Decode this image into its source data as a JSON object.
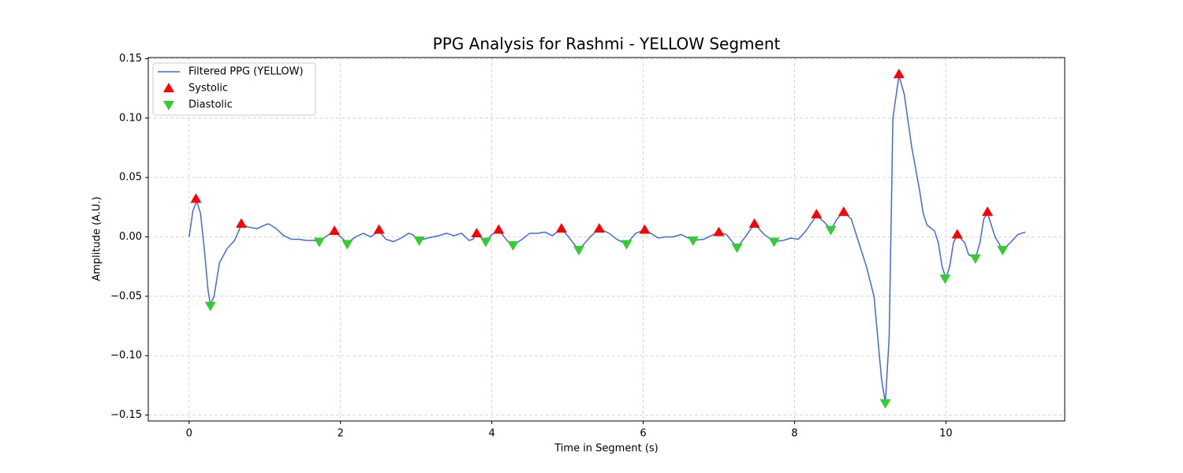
{
  "chart_data": {
    "type": "line",
    "title": "PPG Analysis for Rashmi - YELLOW Segment",
    "xlabel": "Time in Segment (s)",
    "ylabel": "Amplitude (A.U.)",
    "xlim": [
      -0.54,
      11.57
    ],
    "ylim": [
      -0.155,
      0.151
    ],
    "xticks": [
      0,
      2,
      4,
      6,
      8,
      10
    ],
    "yticks": [
      {
        "value": -0.15,
        "label": "−0.15"
      },
      {
        "value": -0.1,
        "label": "−0.10"
      },
      {
        "value": -0.05,
        "label": "−0.05"
      },
      {
        "value": 0,
        "label": "0.00"
      },
      0.05,
      {
        "value": 0.1,
        "label": "0.10"
      },
      0.15
    ],
    "grid": true,
    "legend": "upper left",
    "series": [
      {
        "name": "Filtered PPG (YELLOW)",
        "type": "line",
        "color": "#4169e1",
        "x": [
          0,
          0.05,
          0.1,
          0.15,
          0.2,
          0.25,
          0.28,
          0.33,
          0.4,
          0.5,
          0.6,
          0.69,
          0.8,
          0.9,
          1.0,
          1.05,
          1.15,
          1.25,
          1.35,
          1.45,
          1.55,
          1.65,
          1.72,
          1.8,
          1.92,
          2.0,
          2.09,
          2.2,
          2.3,
          2.4,
          2.51,
          2.6,
          2.7,
          2.8,
          2.9,
          2.95,
          3.04,
          3.15,
          3.3,
          3.4,
          3.5,
          3.6,
          3.7,
          3.75,
          3.8,
          3.92,
          4.0,
          4.09,
          4.2,
          4.28,
          4.4,
          4.5,
          4.6,
          4.7,
          4.8,
          4.92,
          5.0,
          5.15,
          5.3,
          5.42,
          5.55,
          5.65,
          5.78,
          5.9,
          6.02,
          6.1,
          6.2,
          6.3,
          6.4,
          6.5,
          6.66,
          6.8,
          6.9,
          7.0,
          7.1,
          7.24,
          7.35,
          7.47,
          7.6,
          7.73,
          7.85,
          7.95,
          8.05,
          8.15,
          8.29,
          8.4,
          8.48,
          8.56,
          8.65,
          8.75,
          8.85,
          8.95,
          9.05,
          9.1,
          9.15,
          9.2,
          9.25,
          9.3,
          9.38,
          9.45,
          9.55,
          9.65,
          9.7,
          9.75,
          9.85,
          9.9,
          9.95,
          10.0,
          10.05,
          10.1,
          10.15,
          10.25,
          10.3,
          10.39,
          10.45,
          10.5,
          10.55,
          10.65,
          10.75,
          10.85,
          10.95,
          11.05
        ],
        "values": [
          0,
          0.022,
          0.03,
          0.02,
          -0.01,
          -0.045,
          -0.057,
          -0.05,
          -0.022,
          -0.01,
          -0.003,
          0.01,
          0.008,
          0.007,
          0.01,
          0.011,
          0.007,
          0.001,
          -0.002,
          -0.002,
          -0.003,
          -0.003,
          -0.004,
          0,
          0.005,
          0,
          -0.005,
          0,
          0.003,
          0,
          0.005,
          -0.002,
          -0.004,
          -0.001,
          0.003,
          0.002,
          -0.003,
          -0.001,
          0.001,
          0.003,
          0.001,
          0.003,
          -0.003,
          -0.002,
          0.003,
          -0.004,
          0.002,
          0.006,
          -0.003,
          -0.007,
          -0.002,
          0.003,
          0.003,
          0.004,
          0.001,
          0.007,
          0.001,
          -0.011,
          0,
          0.007,
          0.003,
          -0.002,
          -0.006,
          0.003,
          0.006,
          0.003,
          -0.001,
          0,
          0,
          0.002,
          -0.003,
          -0.002,
          0.001,
          0.004,
          0.002,
          -0.009,
          0,
          0.011,
          0.002,
          -0.004,
          -0.003,
          -0.001,
          -0.002,
          0.005,
          0.018,
          0.012,
          0.006,
          0.015,
          0.021,
          0.015,
          -0.005,
          -0.025,
          -0.05,
          -0.085,
          -0.12,
          -0.14,
          -0.085,
          0.1,
          0.136,
          0.12,
          0.075,
          0.04,
          0.02,
          0.01,
          0.005,
          -0.005,
          -0.025,
          -0.035,
          -0.025,
          -0.005,
          0.002,
          -0.005,
          -0.015,
          -0.018,
          -0.005,
          0.015,
          0.02,
          0,
          -0.011,
          -0.005,
          0.002,
          0.004
        ]
      },
      {
        "name": "Systolic",
        "type": "scatter",
        "marker": "triangle-up",
        "color": "#ff0000",
        "x": [
          0.09,
          0.69,
          1.92,
          2.51,
          3.8,
          4.09,
          4.92,
          5.42,
          6.02,
          7.0,
          7.47,
          8.29,
          8.65,
          9.38,
          10.15,
          10.55
        ],
        "values": [
          0.032,
          0.011,
          0.005,
          0.006,
          0.003,
          0.006,
          0.007,
          0.007,
          0.006,
          0.004,
          0.011,
          0.019,
          0.021,
          0.137,
          0.002,
          0.021
        ]
      },
      {
        "name": "Diastolic",
        "type": "scatter",
        "marker": "triangle-down",
        "color": "#32cd32",
        "x": [
          0.28,
          1.72,
          2.09,
          3.04,
          3.92,
          4.28,
          5.15,
          5.78,
          6.66,
          7.24,
          7.73,
          8.48,
          9.2,
          9.99,
          10.39,
          10.75
        ],
        "values": [
          -0.058,
          -0.004,
          -0.006,
          -0.003,
          -0.004,
          -0.007,
          -0.011,
          -0.006,
          -0.003,
          -0.009,
          -0.004,
          0.006,
          -0.14,
          -0.035,
          -0.018,
          -0.011
        ]
      }
    ]
  }
}
